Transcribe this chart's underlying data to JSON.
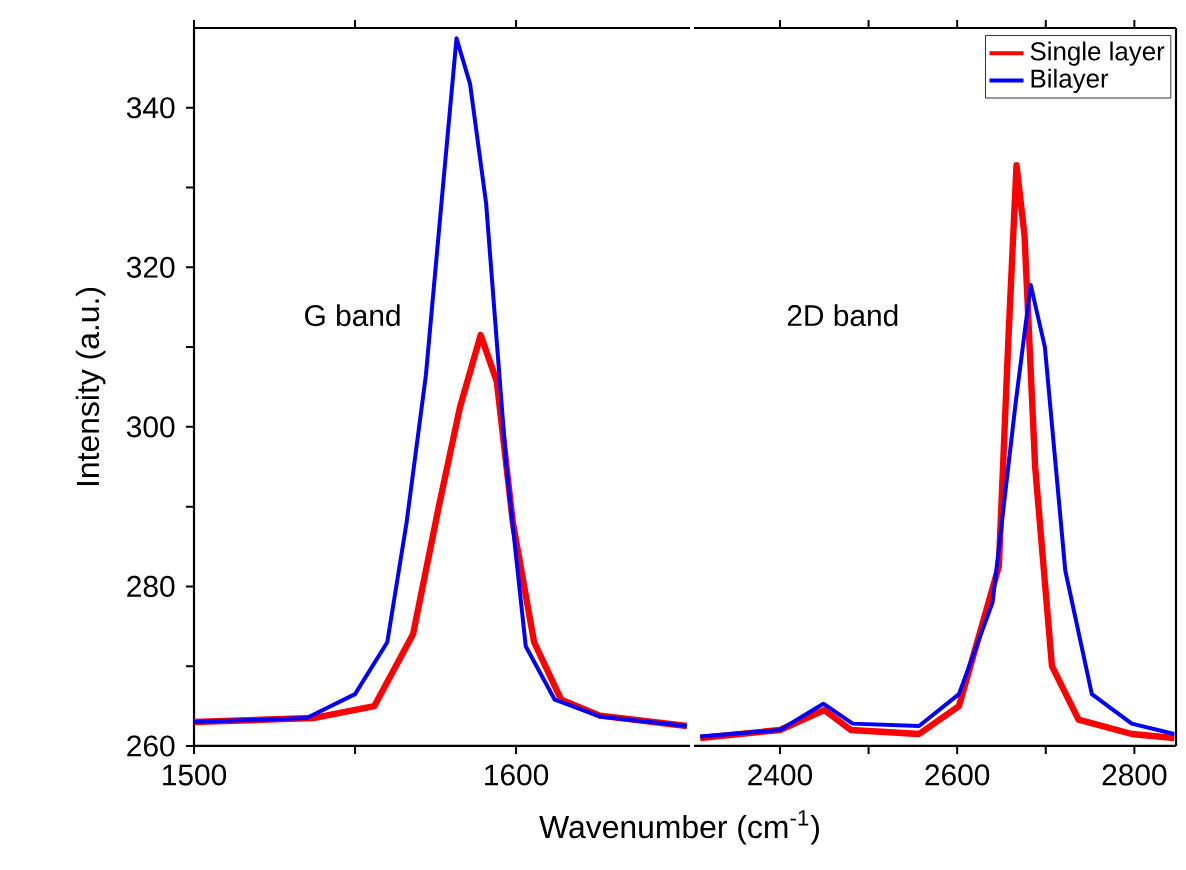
{
  "chart_data": [
    {
      "type": "line",
      "xlabel": "Wavenumber (cm$^{-1}$)",
      "ylabel": "Intensity (a.u.)",
      "xlim": [
        1500,
        1654
      ],
      "ylim": [
        260,
        350
      ],
      "xticks": [
        1500,
        {
          "value": 1550,
          "label": null
        },
        1600
      ],
      "yticks": [
        260,
        {
          "value": 270,
          "label": null
        },
        280,
        {
          "value": 290,
          "label": null
        },
        300,
        {
          "value": 310,
          "label": null
        },
        320,
        {
          "value": 330,
          "label": null
        },
        340
      ],
      "annotations": [
        "G band"
      ],
      "series": [
        {
          "color": "#ff0000",
          "x": [
            1500,
            1537,
            1556,
            1568,
            1576,
            1582.6,
            1589,
            1594,
            1599,
            1605.6,
            1614,
            1626,
            1653
          ],
          "values": [
            263,
            263.5,
            265,
            274,
            290,
            302.5,
            311.5,
            305.7,
            288,
            273,
            265.8,
            263.8,
            262.5
          ]
        },
        {
          "color": "#0000ff",
          "x": [
            1500,
            1535,
            1550,
            1560,
            1566,
            1572,
            1577.6,
            1581.5,
            1585.7,
            1590.7,
            1597,
            1603,
            1612,
            1626,
            1653
          ],
          "values": [
            263,
            263.5,
            266.5,
            273,
            288,
            306.5,
            331.5,
            348.7,
            343,
            328,
            295,
            272.5,
            265.8,
            263.7,
            262.5
          ]
        }
      ]
    },
    {
      "type": "line",
      "xlim": [
        2303,
        2847
      ],
      "ylim": [
        260,
        350
      ],
      "xticks": [
        2400,
        {
          "value": 2500,
          "label": null
        },
        2600,
        {
          "value": 2700,
          "label": null
        },
        2800
      ],
      "tick_labels": "x",
      "legend": "top right",
      "annotations": [
        "2D band"
      ],
      "series": [
        {
          "name": "Single layer",
          "color": "#ff0000",
          "x": [
            2310,
            2400,
            2450,
            2480,
            2557,
            2602,
            2647,
            2658,
            2667,
            2676,
            2688,
            2707,
            2737,
            2797,
            2845
          ],
          "values": [
            261,
            262,
            264.5,
            262,
            261.5,
            265,
            282.5,
            311.5,
            332.8,
            324,
            295,
            270,
            263.3,
            261.5,
            261
          ]
        },
        {
          "name": "Bilayer",
          "color": "#0000ff",
          "x": [
            2310,
            2400,
            2449,
            2482,
            2557,
            2602,
            2640,
            2666,
            2683,
            2699,
            2722,
            2752,
            2797,
            2845
          ],
          "values": [
            261.2,
            262,
            265.3,
            262.8,
            262.5,
            266.5,
            278,
            303,
            317.8,
            310,
            282,
            266.5,
            262.8,
            261.5
          ]
        }
      ]
    }
  ]
}
